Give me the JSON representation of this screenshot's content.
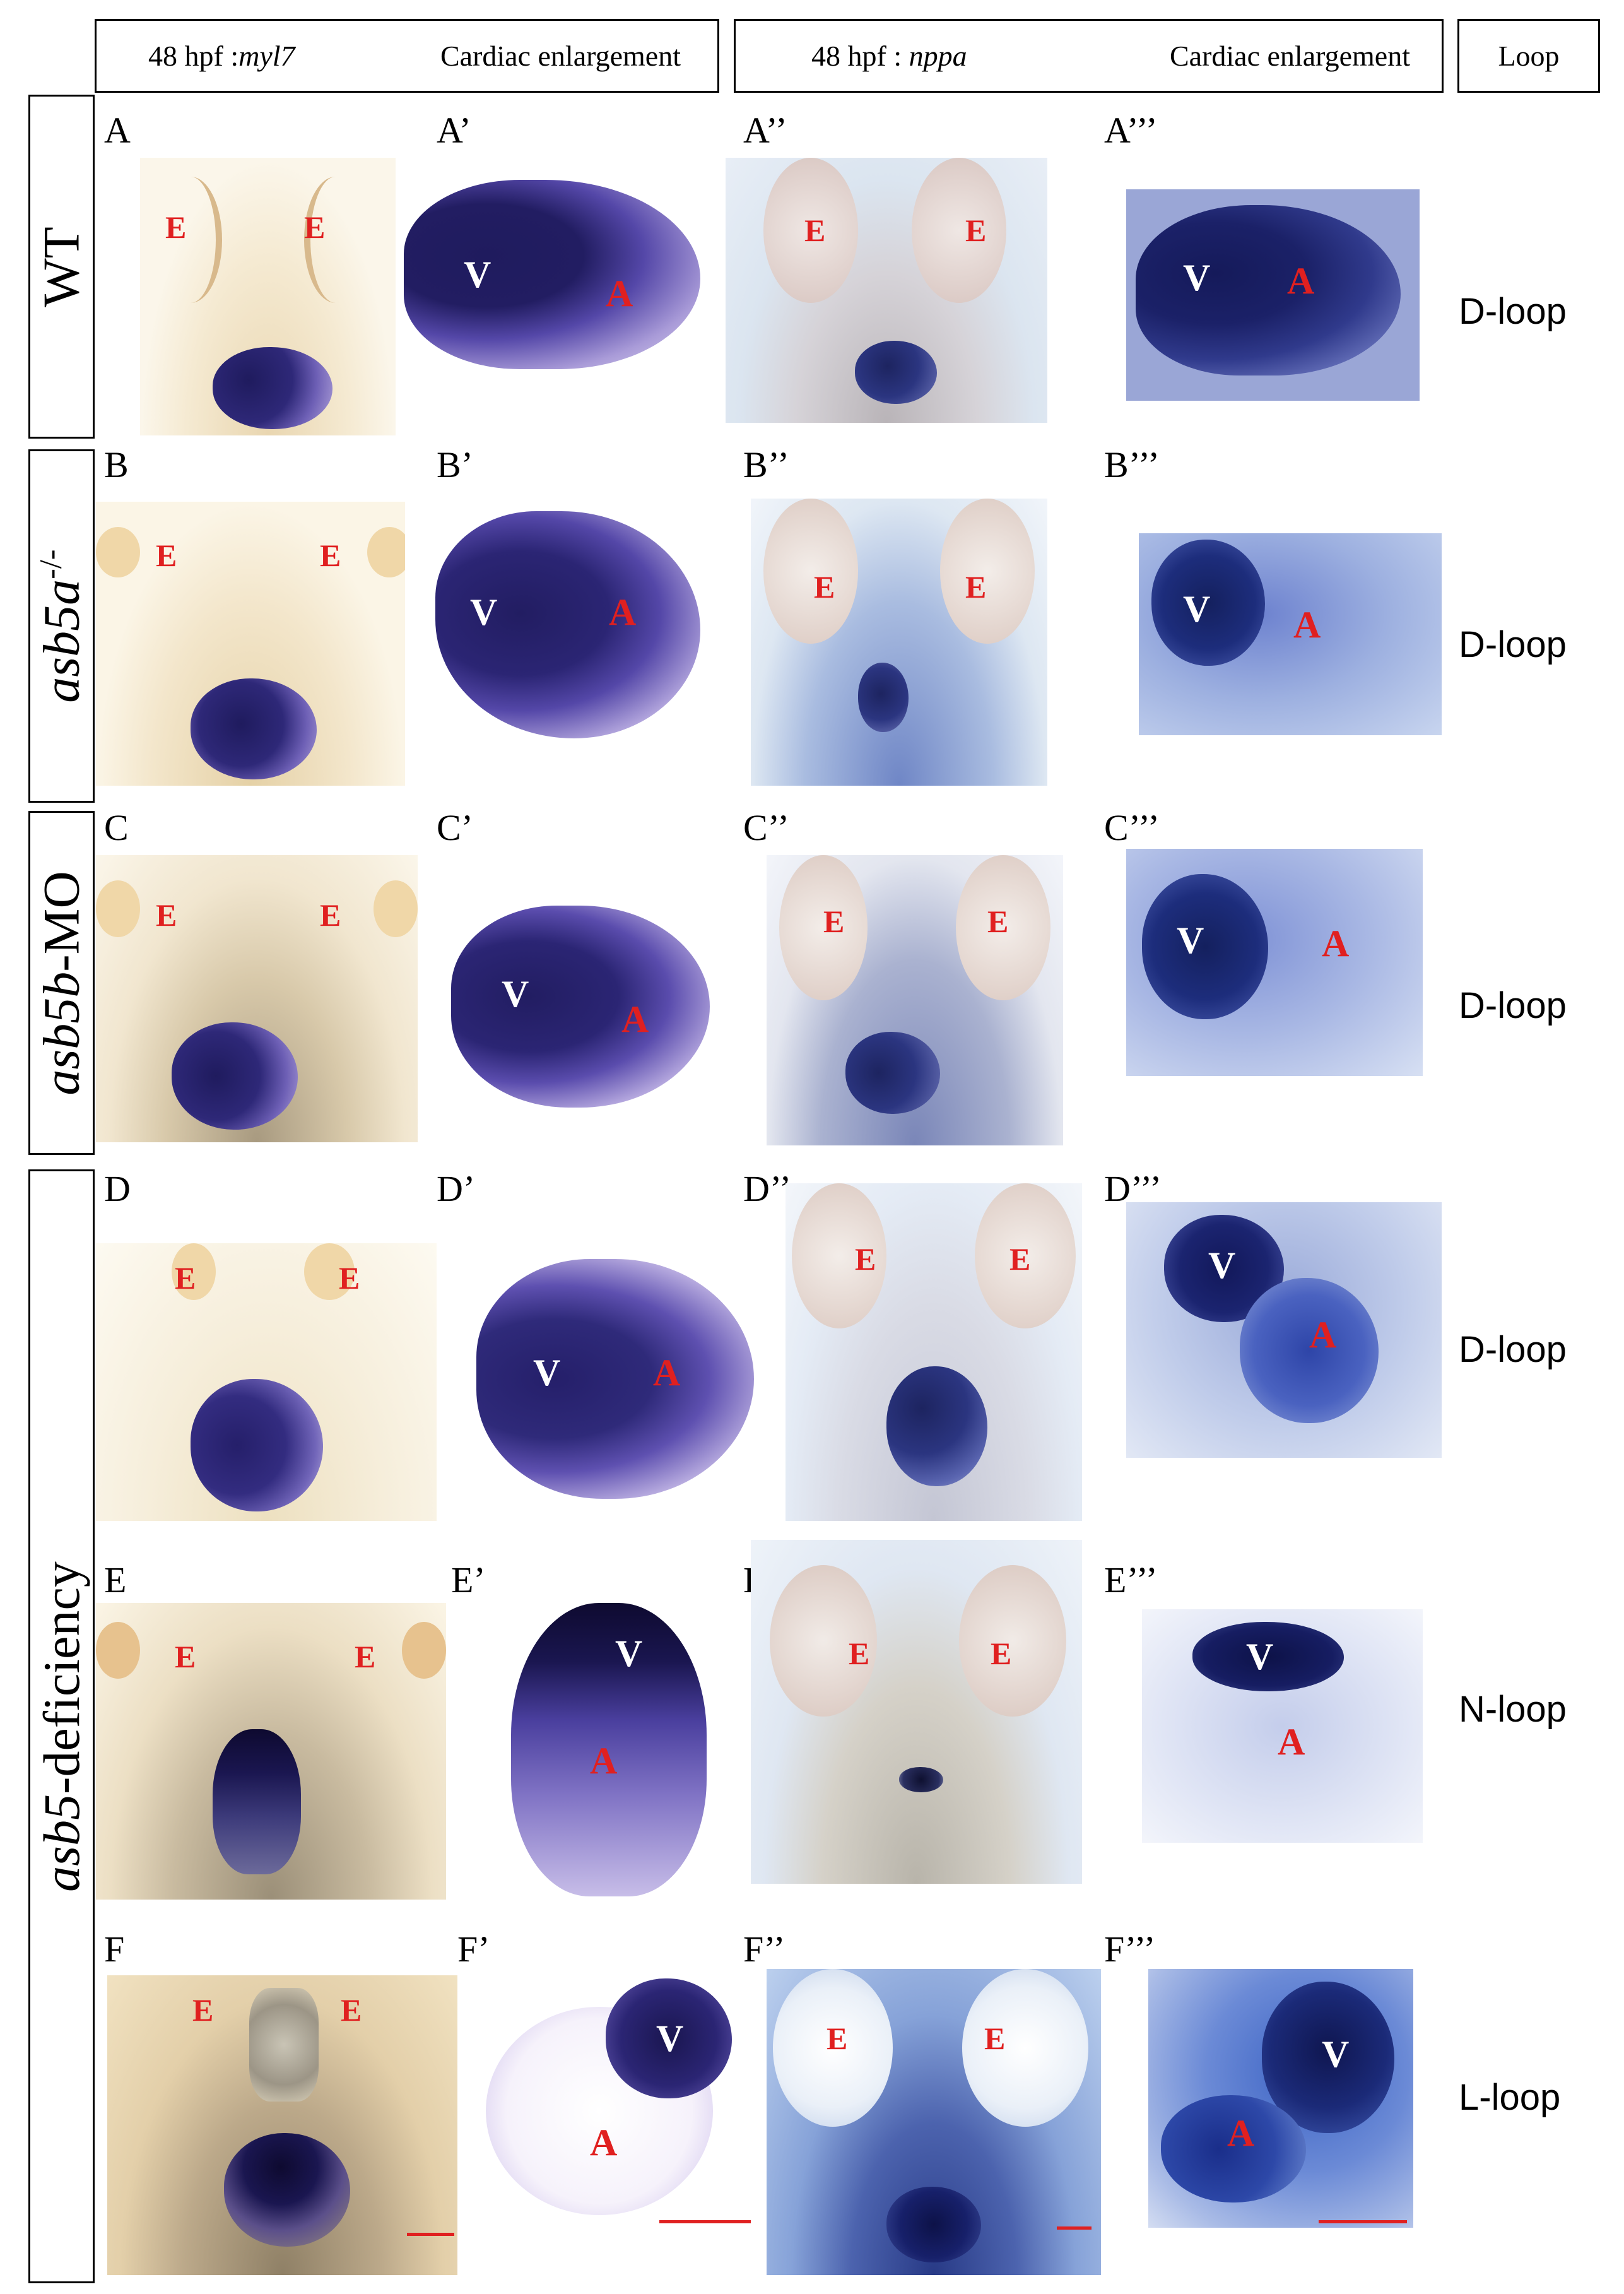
{
  "colors": {
    "myl7_bg": "#f3e5c8",
    "nppa_bg": "#d7e2ee",
    "stain_dark": "#1f1b5e",
    "stain_mid": "#5447a8",
    "stain_light": "#c4b8e8",
    "label_red": "#e02020",
    "scale_bar": "#e02020"
  },
  "header": {
    "group1": {
      "stage": "48 hpf :",
      "gene": "myl7",
      "title": "Cardiac enlargement"
    },
    "group2": {
      "stage": "48 hpf : ",
      "gene": "nppa",
      "title": "Cardiac enlargement"
    },
    "loop": "Loop"
  },
  "row_labels": {
    "wt": "WT",
    "asb5a": {
      "gene": "asb5a",
      "sup": "-/-"
    },
    "asb5b": {
      "gene": "asb5b",
      "suffix": "-MO"
    },
    "asb5": {
      "gene": "asb5",
      "suffix": "-deficiency"
    }
  },
  "markers": {
    "eye": "E",
    "ventricle": "V",
    "atrium": "A"
  },
  "rows": [
    {
      "letter": "A",
      "panels": [
        "A",
        "A’",
        "A’’",
        "A’’’"
      ],
      "loop": "D-loop"
    },
    {
      "letter": "B",
      "panels": [
        "B",
        "B’",
        "B’’",
        "B’’’"
      ],
      "loop": "D-loop"
    },
    {
      "letter": "C",
      "panels": [
        "C",
        "C’",
        "C’’",
        "C’’’"
      ],
      "loop": "D-loop"
    },
    {
      "letter": "D",
      "panels": [
        "D",
        "D’",
        "D’’",
        "D’’’"
      ],
      "loop": "D-loop"
    },
    {
      "letter": "E",
      "panels": [
        "E",
        "E’",
        "E’’",
        "E’’’"
      ],
      "loop": "N-loop"
    },
    {
      "letter": "F",
      "panels": [
        "F",
        "F’",
        "F’’",
        "F’’’"
      ],
      "loop": "L-loop"
    }
  ]
}
